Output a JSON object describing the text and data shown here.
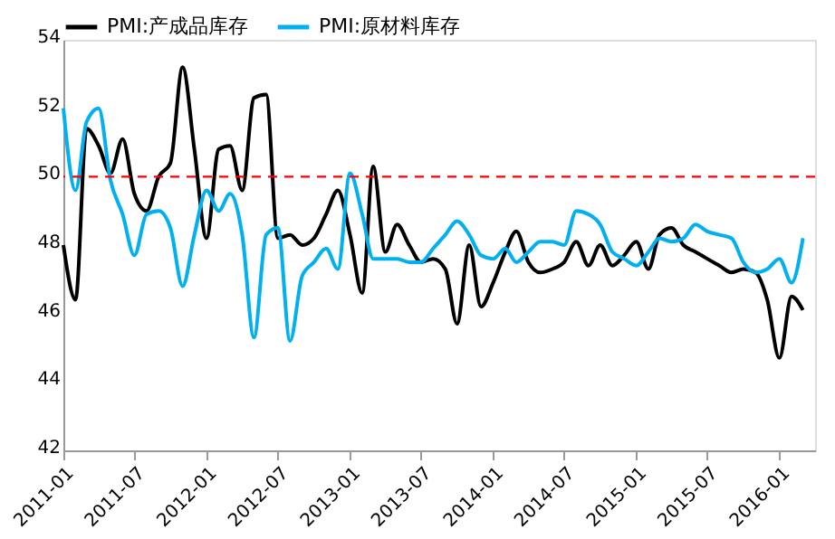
{
  "chart_data": {
    "type": "line",
    "x": [
      "2011-01",
      "2011-02",
      "2011-03",
      "2011-04",
      "2011-05",
      "2011-06",
      "2011-07",
      "2011-08",
      "2011-09",
      "2011-10",
      "2011-11",
      "2011-12",
      "2012-01",
      "2012-02",
      "2012-03",
      "2012-04",
      "2012-05",
      "2012-06",
      "2012-07",
      "2012-08",
      "2012-09",
      "2012-10",
      "2012-11",
      "2012-12",
      "2013-01",
      "2013-02",
      "2013-03",
      "2013-04",
      "2013-05",
      "2013-06",
      "2013-07",
      "2013-08",
      "2013-09",
      "2013-10",
      "2013-11",
      "2013-12",
      "2014-01",
      "2014-02",
      "2014-03",
      "2014-04",
      "2014-05",
      "2014-06",
      "2014-07",
      "2014-08",
      "2014-09",
      "2014-10",
      "2014-11",
      "2014-12",
      "2015-01",
      "2015-02",
      "2015-03",
      "2015-04",
      "2015-05",
      "2015-06",
      "2015-07",
      "2015-08",
      "2015-09",
      "2015-10",
      "2015-11",
      "2015-12",
      "2016-01",
      "2016-02",
      "2016-03"
    ],
    "series": [
      {
        "name": "PMI:产成品库存",
        "color": "#000000",
        "values": [
          48.0,
          46.4,
          51.4,
          50.9,
          50.1,
          51.1,
          49.5,
          49.0,
          50.0,
          50.4,
          53.2,
          50.8,
          48.2,
          50.8,
          50.9,
          49.6,
          52.3,
          52.4,
          48.2,
          48.3,
          48.0,
          48.2,
          48.9,
          49.6,
          48.3,
          46.6,
          50.3,
          47.8,
          48.6,
          48.0,
          47.5,
          47.6,
          47.3,
          45.7,
          48.0,
          46.2,
          46.9,
          47.8,
          48.4,
          47.5,
          47.2,
          47.3,
          47.5,
          48.1,
          47.4,
          48.0,
          47.4,
          47.7,
          48.1,
          47.3,
          48.3,
          48.5,
          48.0,
          47.8,
          47.6,
          47.4,
          47.2,
          47.3,
          47.2,
          46.4,
          44.7,
          46.5,
          46.1
        ]
      },
      {
        "name": "PMI:原材料库存",
        "color": "#00b0f0",
        "values": [
          52.0,
          49.6,
          51.6,
          52.0,
          49.9,
          48.9,
          47.7,
          48.9,
          49.0,
          48.5,
          46.8,
          48.3,
          49.6,
          49.0,
          49.5,
          48.3,
          45.3,
          48.3,
          48.5,
          45.2,
          47.1,
          47.5,
          47.9,
          47.3,
          50.1,
          48.9,
          47.6,
          47.6,
          47.6,
          47.5,
          47.5,
          47.9,
          48.3,
          48.7,
          48.3,
          47.7,
          47.6,
          47.9,
          47.5,
          47.8,
          48.1,
          48.1,
          48.0,
          49.0,
          48.9,
          48.6,
          47.8,
          47.6,
          47.4,
          47.8,
          48.2,
          48.1,
          48.2,
          48.6,
          48.4,
          48.3,
          48.2,
          47.5,
          47.2,
          47.3,
          47.6,
          46.9,
          48.2
        ]
      }
    ],
    "xlim": [
      "2011-01",
      "2016-04"
    ],
    "xticks": [
      "2011-01",
      "2011-07",
      "2012-01",
      "2012-07",
      "2013-01",
      "2013-07",
      "2014-01",
      "2014-07",
      "2015-01",
      "2015-07",
      "2016-01"
    ],
    "ylim": [
      42,
      54
    ],
    "yticks": [
      42,
      44,
      46,
      48,
      50,
      52,
      54
    ],
    "ref_lines": [
      {
        "axis": "y",
        "value": 50,
        "color": "#ff0000",
        "line_style": "dashed"
      }
    ],
    "grid": false,
    "legend": "top",
    "marker": "none",
    "line_style": "solid"
  }
}
